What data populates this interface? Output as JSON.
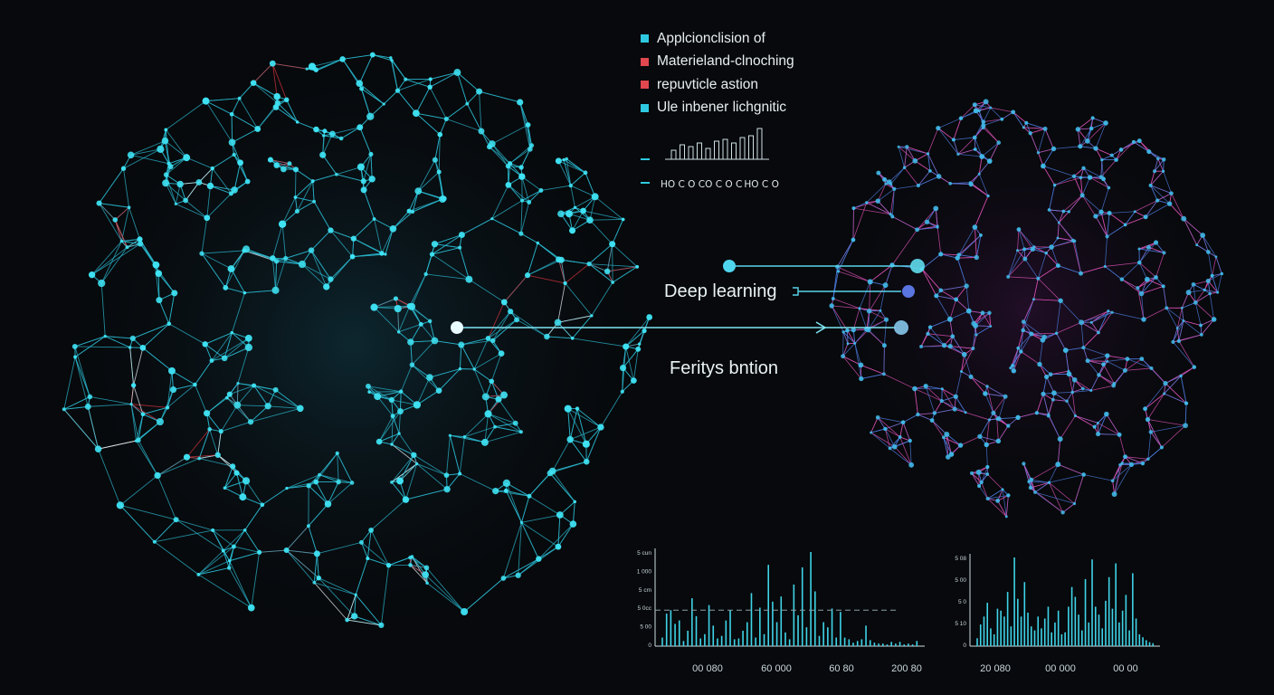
{
  "legend": [
    {
      "label": "Applcionclision of",
      "color": "#2ec9e0"
    },
    {
      "label": "Materieland-clnoching",
      "color": "#e0474f"
    },
    {
      "label": "repuvticle astion",
      "color": "#e0474f"
    },
    {
      "label": "Ule inbener lichgnitic",
      "color": "#2ec9e0"
    }
  ],
  "annotations": {
    "deep_learning": "Deep learning",
    "feature_label": "Feritys bntion"
  },
  "formula": {
    "segments": [
      "HO",
      "O",
      "C",
      "O",
      "O",
      "C",
      "HO",
      "O",
      "C"
    ],
    "text": "HO  C O  CO  C O  C HO  C O"
  },
  "histograms": [
    {
      "x_ticks": [
        "00 080",
        "60 000",
        "60 80",
        "200 80"
      ],
      "y_ticks": [
        "5 cun",
        "1 000",
        "5 cm",
        "5 0cc",
        "5 00",
        "0"
      ],
      "values": [
        10,
        38,
        42,
        26,
        30,
        6,
        18,
        56,
        35,
        9,
        14,
        48,
        24,
        9,
        12,
        30,
        42,
        8,
        9,
        18,
        28,
        62,
        10,
        45,
        14,
        95,
        52,
        28,
        58,
        16,
        8,
        72,
        36,
        92,
        22,
        110,
        64,
        12,
        28,
        22,
        44,
        10,
        40,
        10,
        8,
        4,
        6,
        8,
        24,
        7,
        4,
        3,
        3,
        2,
        5,
        3,
        5,
        2,
        3,
        2,
        6
      ],
      "threshold": 42
    },
    {
      "x_ticks": [
        "20 080",
        "00 000",
        "00 00"
      ],
      "y_ticks": [
        "5 08",
        "5 00",
        "5 0",
        "5 10",
        "0"
      ],
      "values": [
        8,
        22,
        30,
        44,
        18,
        12,
        38,
        36,
        30,
        55,
        20,
        90,
        48,
        30,
        65,
        34,
        20,
        16,
        30,
        18,
        28,
        40,
        14,
        24,
        36,
        12,
        14,
        40,
        60,
        50,
        32,
        16,
        68,
        24,
        88,
        40,
        32,
        18,
        46,
        70,
        38,
        84,
        24,
        36,
        52,
        16,
        74,
        28,
        12,
        9,
        6,
        4,
        3
      ]
    }
  ],
  "colors": {
    "left_network_edge": "#2ab6cc",
    "left_network_node": "#3fe3f4",
    "right_network_edge_a": "#d74fb0",
    "right_network_edge_b": "#4a78d8",
    "right_network_node": "#3fb8e6",
    "highlight_red": "#d8333f",
    "connector": "#59d4ea"
  }
}
